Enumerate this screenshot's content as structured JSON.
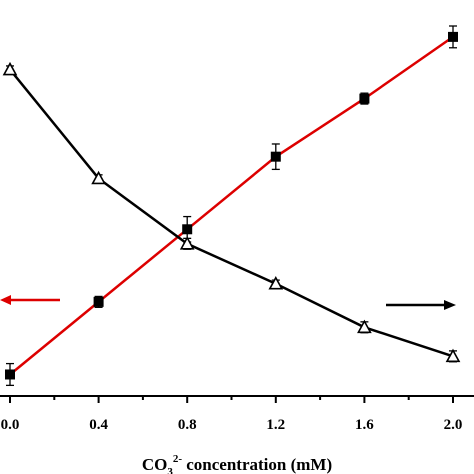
{
  "chart_data": {
    "type": "line",
    "x": [
      0.0,
      0.4,
      0.8,
      1.2,
      1.6,
      2.0
    ],
    "x_tick_labels": [
      "0.0",
      "0.4",
      "0.8",
      "1.2",
      "1.6",
      "2.0"
    ],
    "xlim": [
      0.0,
      2.0
    ],
    "xlabel": {
      "prefix": "CO",
      "subscript": "3",
      "superscript": "2-",
      "suffix": " concentration (mM)"
    },
    "ylabel": "",
    "ylim": [
      0,
      100
    ],
    "y_scale_note": "No y-axis values are visible; values below are relative positions on a 0-100 scale.",
    "series": [
      {
        "marker": "filled-square",
        "axis": "left",
        "values": [
          4,
          24,
          44,
          64,
          80,
          97
        ],
        "errors": [
          3,
          1.5,
          3.5,
          3.5,
          1.5,
          3
        ],
        "line_color": "#dd0000",
        "marker_color": "#000000"
      },
      {
        "marker": "open-triangle",
        "axis": "right",
        "values": [
          88,
          58,
          40,
          29,
          17,
          9
        ],
        "errors": [
          1,
          1,
          1.5,
          1,
          1.5,
          1.5
        ],
        "line_color": "#000000",
        "marker_color": "#000000"
      }
    ],
    "annotations": [
      {
        "type": "arrow",
        "direction": "left",
        "color": "#dd0000"
      },
      {
        "type": "arrow",
        "direction": "right",
        "color": "#000000"
      }
    ],
    "grid": false,
    "legend": "none"
  }
}
